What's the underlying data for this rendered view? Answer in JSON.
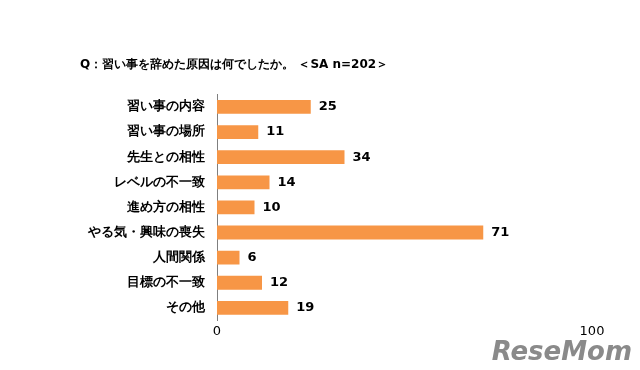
{
  "chart_data": {
    "type": "bar",
    "orientation": "horizontal",
    "title": "Q：習い事を辞めた原因は何でしたか。 ＜SA n=202＞",
    "categories": [
      "習い事の内容",
      "習い事の場所",
      "先生との相性",
      "レベルの不一致",
      "進め方の相性",
      "やる気・興味の喪失",
      "人間関係",
      "目標の不一致",
      "その他"
    ],
    "values": [
      25,
      11,
      34,
      14,
      10,
      71,
      6,
      12,
      19
    ],
    "color": "#f79646",
    "xlim": [
      0,
      100
    ],
    "xticks": [
      0,
      100
    ],
    "grid": false,
    "data_labels": true,
    "annotation": "ReseMom"
  }
}
